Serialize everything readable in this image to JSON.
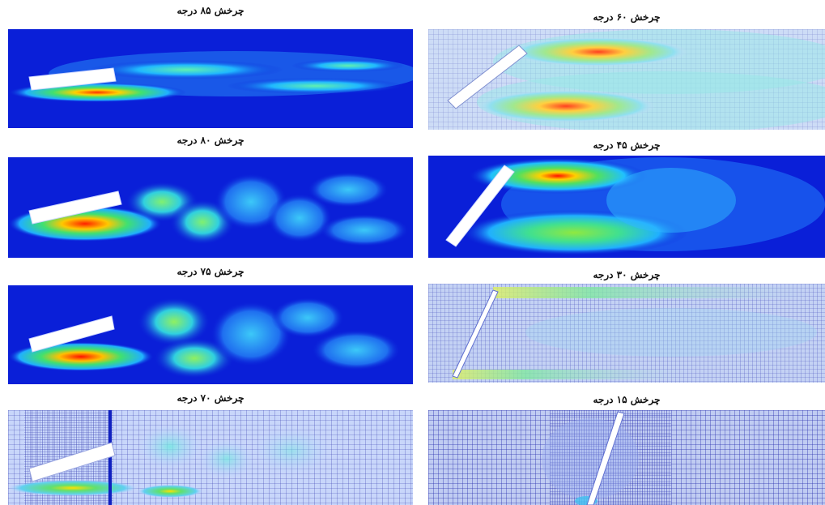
{
  "figure": {
    "panels": [
      {
        "id": "p85",
        "caption": "چرخش ۸۵ درجه",
        "angle": 85,
        "mesh": false
      },
      {
        "id": "p60",
        "caption": "چرخش ۶۰ درجه",
        "angle": 60,
        "mesh": true
      },
      {
        "id": "p80",
        "caption": "چرخش ۸۰ درجه",
        "angle": 80,
        "mesh": false
      },
      {
        "id": "p45",
        "caption": "چرخش ۴۵ درجه",
        "angle": 45,
        "mesh": false
      },
      {
        "id": "p75",
        "caption": "چرخش ۷۵ درجه",
        "angle": 75,
        "mesh": false
      },
      {
        "id": "p30",
        "caption": "چرخش ۳۰ درجه",
        "angle": 30,
        "mesh": true
      },
      {
        "id": "p70",
        "caption": "چرخش ۷۰ درجه",
        "angle": 70,
        "mesh": true
      },
      {
        "id": "p15",
        "caption": "چرخش ۱۵ درجه",
        "angle": 15,
        "mesh": true
      }
    ],
    "colors": {
      "background": "#0a1fd8",
      "plate": "#ffffff",
      "mesh_line": "#2a2fa0"
    }
  }
}
